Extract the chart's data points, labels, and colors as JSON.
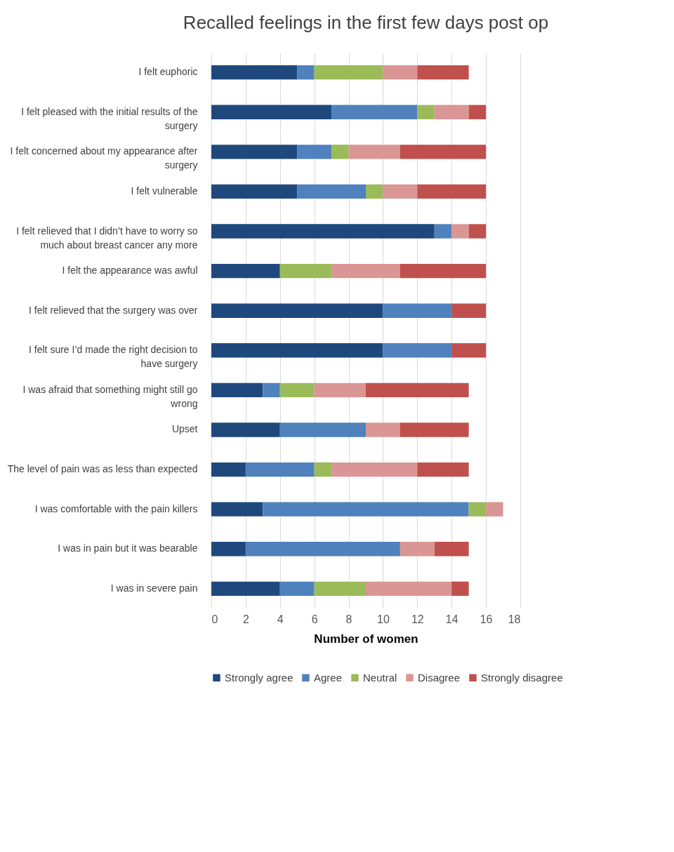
{
  "chart_data": {
    "type": "bar",
    "orientation": "horizontal",
    "stacked": true,
    "title": "Recalled feelings in the first few days post op",
    "xlabel": "Number of women",
    "categories": [
      "I felt euphoric",
      "I felt pleased with the initial results of the surgery",
      "I felt concerned about my appearance after surgery",
      "I felt vulnerable",
      "I felt relieved that I didn’t have to worry so much about breast cancer any more",
      "I felt the appearance was awful",
      "I felt relieved that the surgery was over",
      "I felt sure I’d made the right decision to have surgery",
      "I was afraid that something might still go wrong",
      "Upset",
      "The level of pain was as less than expected",
      "I was comfortable with the pain killers",
      "I was in pain but it was bearable",
      "I was in severe pain"
    ],
    "series": [
      {
        "name": "Strongly agree",
        "color": "#1f497d",
        "values": [
          5,
          7,
          5,
          5,
          13,
          4,
          10,
          10,
          3,
          4,
          2,
          3,
          2,
          4
        ]
      },
      {
        "name": "Agree",
        "color": "#4f81bd",
        "values": [
          1,
          5,
          2,
          4,
          1,
          0,
          4,
          4,
          1,
          5,
          4,
          12,
          9,
          2
        ]
      },
      {
        "name": "Neutral",
        "color": "#9bbb59",
        "values": [
          4,
          1,
          1,
          1,
          0,
          3,
          0,
          0,
          2,
          0,
          1,
          1,
          0,
          3
        ]
      },
      {
        "name": "Disagree",
        "color": "#da9694",
        "values": [
          2,
          2,
          3,
          2,
          1,
          4,
          0,
          0,
          3,
          2,
          5,
          1,
          2,
          5
        ]
      },
      {
        "name": "Strongly disagree",
        "color": "#c0504d",
        "values": [
          3,
          1,
          5,
          4,
          1,
          5,
          2,
          2,
          6,
          4,
          3,
          0,
          2,
          1
        ]
      }
    ],
    "xlim": [
      0,
      18
    ],
    "xticks": [
      0,
      2,
      4,
      6,
      8,
      10,
      12,
      14,
      16,
      18
    ],
    "grid": "x",
    "legend": "bottom"
  }
}
